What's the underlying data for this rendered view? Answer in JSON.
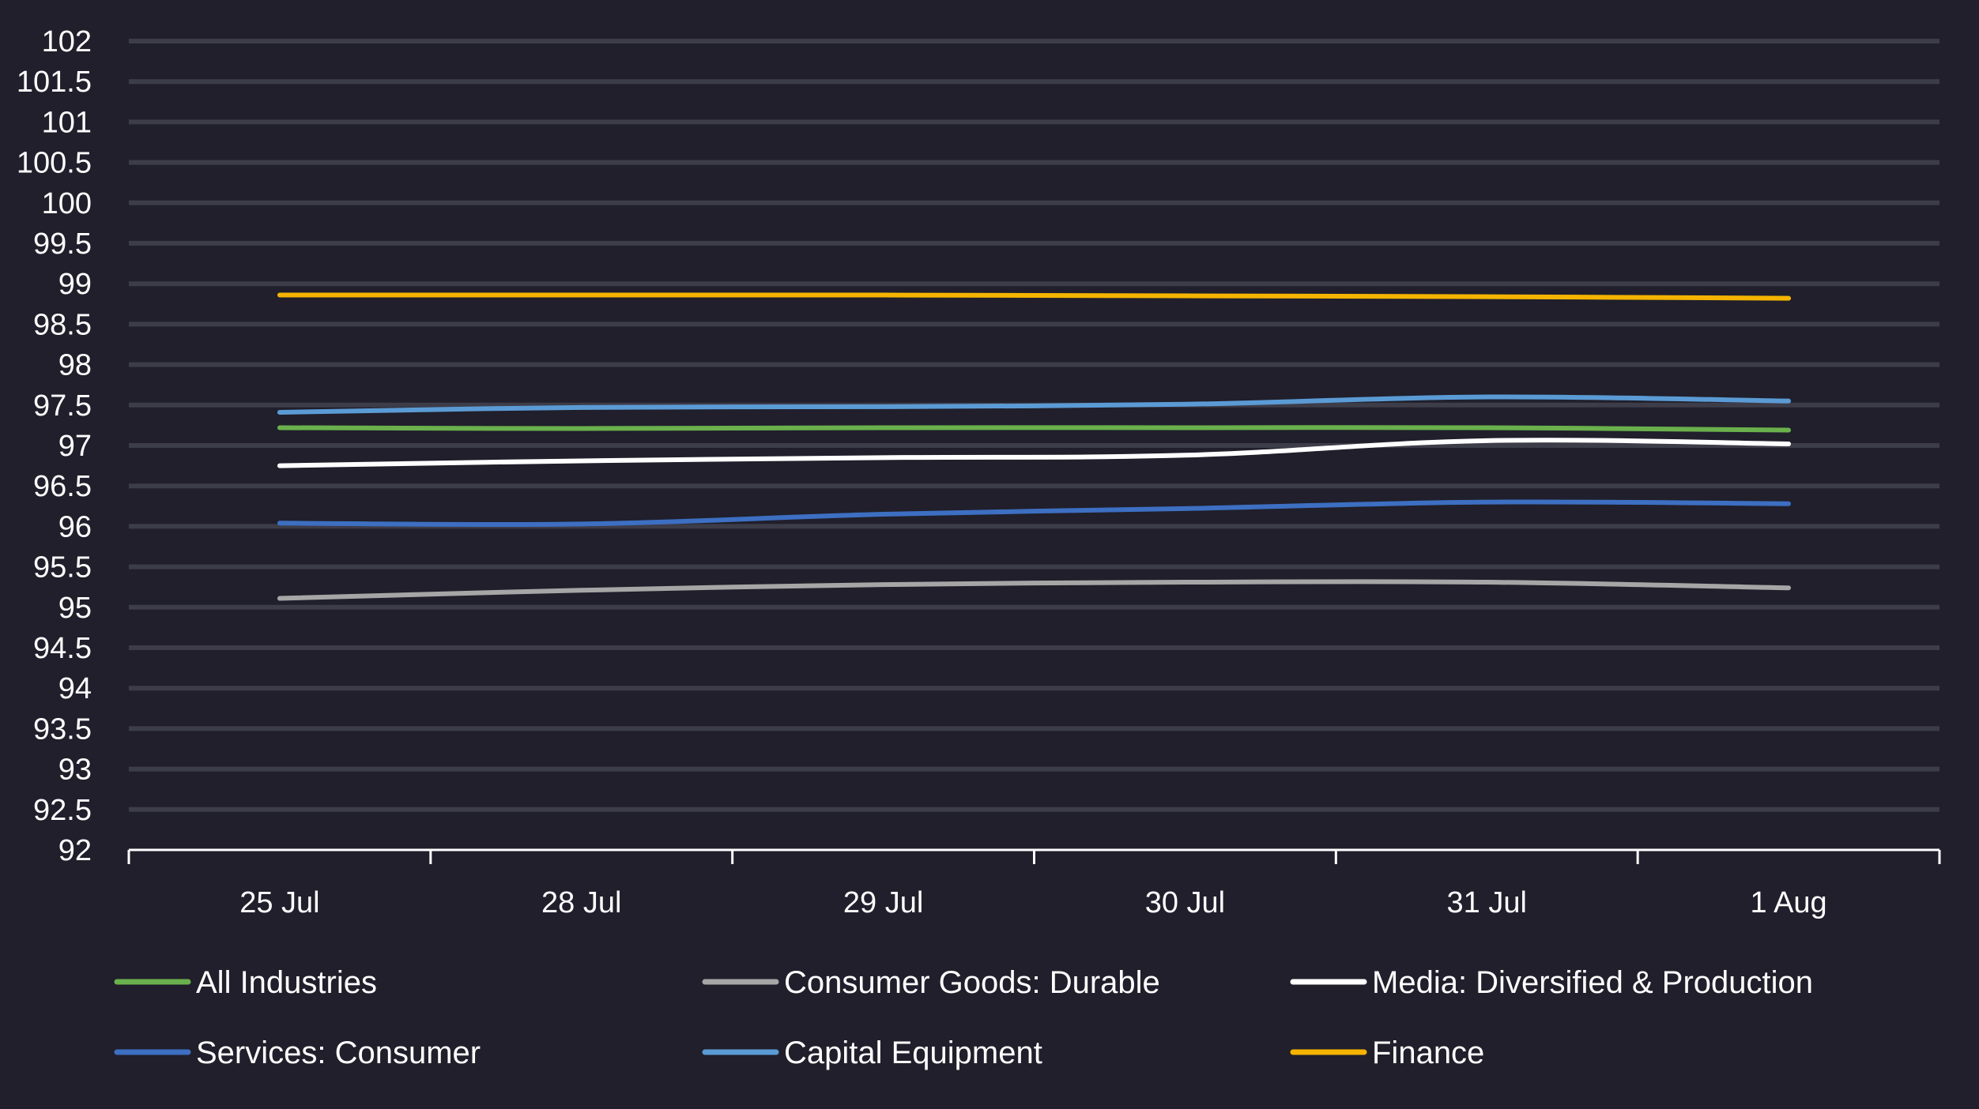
{
  "chart_data": {
    "type": "line",
    "title": "",
    "xlabel": "",
    "ylabel": "",
    "categories": [
      "25 Jul",
      "28 Jul",
      "29 Jul",
      "30 Jul",
      "31 Jul",
      "1 Aug"
    ],
    "ylim": [
      92,
      102
    ],
    "yticks": [
      "92",
      "92.5",
      "93",
      "93.5",
      "94",
      "94.5",
      "95",
      "95.5",
      "96",
      "96.5",
      "97",
      "97.5",
      "98",
      "98.5",
      "99",
      "99.5",
      "100",
      "100.5",
      "101",
      "101.5",
      "102"
    ],
    "grid": true,
    "legend_position": "bottom",
    "background_color": "#201f2b",
    "series": [
      {
        "name": "All Industries",
        "color": "#6ab04c",
        "values": [
          97.22,
          97.21,
          97.22,
          97.22,
          97.22,
          97.19
        ]
      },
      {
        "name": "Consumer Goods: Durable",
        "color": "#a6a6a6",
        "values": [
          95.11,
          95.21,
          95.28,
          95.31,
          95.31,
          95.24
        ]
      },
      {
        "name": "Media: Diversified & Production",
        "color": "#ffffff",
        "values": [
          96.75,
          96.81,
          96.85,
          96.88,
          97.06,
          97.02
        ]
      },
      {
        "name": "Services: Consumer",
        "color": "#3d6fc2",
        "values": [
          96.04,
          96.03,
          96.15,
          96.22,
          96.3,
          96.28
        ]
      },
      {
        "name": "Capital Equipment",
        "color": "#5b9bd5",
        "values": [
          97.41,
          97.47,
          97.48,
          97.51,
          97.6,
          97.55
        ]
      },
      {
        "name": "Finance",
        "color": "#f4b400",
        "values": [
          98.86,
          98.86,
          98.86,
          98.85,
          98.84,
          98.82
        ]
      }
    ]
  }
}
